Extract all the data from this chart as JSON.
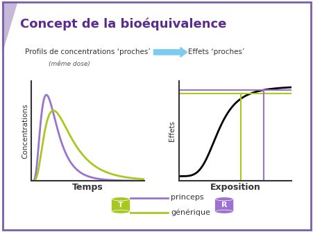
{
  "title": "Concept de la bioéquivalence",
  "title_color": "#5B2C8D",
  "title_fontsize": 13,
  "bg_color": "#FFFFFF",
  "border_color": "#7B5EA7",
  "text1": "Profils de concentrations ‘proches’",
  "text1_sub": "(même dose)",
  "text2": "Effets ‘proches’",
  "arrow_color": "#7ECBF0",
  "left_xlabel": "Temps",
  "left_ylabel": "Concentrations",
  "right_xlabel": "Exposition",
  "right_ylabel": "Effets",
  "purple_color": "#9B72CF",
  "green_color": "#A8C820",
  "black_color": "#000000",
  "legend_princeps": "princeps",
  "legend_generique": "générique",
  "triangle_color": "#C5B8D8"
}
